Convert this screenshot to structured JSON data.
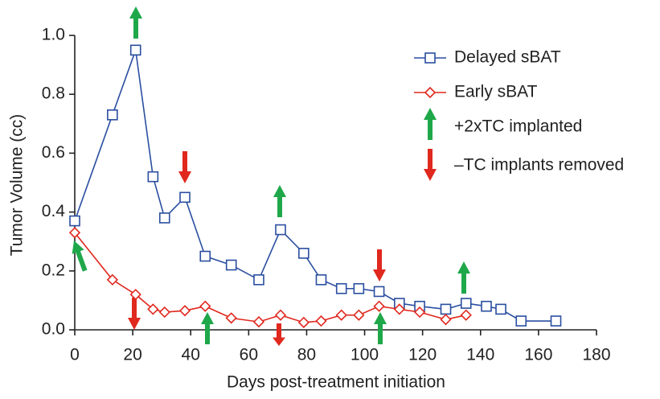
{
  "chart_data": {
    "type": "line",
    "xlabel": "Days post-treatment initiation",
    "ylabel": "Tumor Volume (cc)",
    "xlim": [
      0,
      180
    ],
    "xticks": [
      0,
      20,
      40,
      60,
      80,
      100,
      120,
      140,
      160,
      180
    ],
    "ylim": [
      0,
      1.0
    ],
    "yticks": [
      {
        "value": 0,
        "label": "0.0"
      },
      0.2,
      0.4,
      0.6,
      0.8,
      {
        "value": 1.0,
        "label": "1.0"
      }
    ],
    "series": [
      {
        "name": "Delayed sBAT",
        "color": "#2a4ea0",
        "marker": "square",
        "x": [
          0,
          13,
          21,
          27,
          31,
          38,
          45,
          54,
          63.5,
          71,
          79,
          85,
          92,
          98,
          105,
          112,
          119,
          128,
          135,
          142,
          147,
          154,
          166
        ],
        "values": [
          0.37,
          0.73,
          0.95,
          0.52,
          0.38,
          0.45,
          0.25,
          0.22,
          0.17,
          0.34,
          0.26,
          0.17,
          0.14,
          0.14,
          0.13,
          0.09,
          0.08,
          0.07,
          0.09,
          0.08,
          0.07,
          0.03,
          0.03
        ]
      },
      {
        "name": "Early sBAT",
        "color": "#e0281e",
        "marker": "diamond",
        "x": [
          0,
          13,
          21,
          27,
          31,
          38,
          45,
          54,
          63.5,
          71,
          79,
          85,
          92,
          98,
          105,
          112,
          119,
          128,
          135
        ],
        "values": [
          0.33,
          0.17,
          0.12,
          0.07,
          0.06,
          0.065,
          0.08,
          0.04,
          0.027,
          0.05,
          0.025,
          0.03,
          0.05,
          0.05,
          0.08,
          0.07,
          0.06,
          0.035,
          0.05
        ]
      }
    ],
    "annotations": [
      "+2xTC implanted",
      "–TC implants removed"
    ]
  }
}
